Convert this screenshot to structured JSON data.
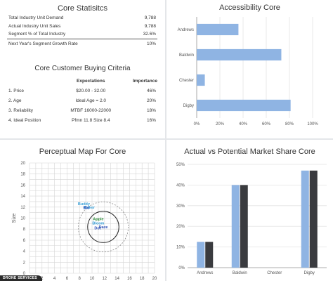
{
  "stats": {
    "title": "Core Statisitcs",
    "rows": [
      {
        "label": "Total Industry Unit Demand",
        "value": "9,788"
      },
      {
        "label": "Actual Industry Unit Sales",
        "value": "9,788"
      },
      {
        "label": "Segment % of Total Industry",
        "value": "32.6%"
      },
      {
        "label": "Next Year's Segment Growth Rate",
        "value": "10%"
      }
    ]
  },
  "criteria": {
    "title": "Core Customer Buying Criteria",
    "col_expectations": "Expectations",
    "col_importance": "Importance",
    "rows": [
      {
        "label": "1. Price",
        "expectation": "$20.00 - 32.00",
        "importance": "46%"
      },
      {
        "label": "2. Age",
        "expectation": "Ideal Age = 2.0",
        "importance": "20%"
      },
      {
        "label": "3. Reliability",
        "expectation": "MTBF 16000-22000",
        "importance": "18%"
      },
      {
        "label": "4. Ideal Position",
        "expectation": "Pfmn 11.8 Size 8.4",
        "importance": "16%"
      }
    ]
  },
  "badge": "DRONE SERVICES",
  "chart_data": [
    {
      "type": "bar",
      "orientation": "horizontal",
      "title": "Accessibility Core",
      "categories": [
        "Andrews",
        "Baldwin",
        "Chester",
        "Digby"
      ],
      "values": [
        36,
        73,
        7,
        81
      ],
      "xlim": [
        0,
        100
      ],
      "xticks": [
        "0%",
        "20%",
        "40%",
        "60%",
        "80%",
        "100%"
      ],
      "grid": true,
      "color": "#8fb4e3"
    },
    {
      "type": "scatter",
      "title": "Perceptual Map For Core",
      "ylabel": "Size",
      "xlim": [
        0,
        20
      ],
      "ylim": [
        0,
        20
      ],
      "yticks": [
        "0",
        "2",
        "4",
        "6",
        "8",
        "10",
        "12",
        "14",
        "16",
        "18",
        "20"
      ],
      "xticks": [
        "0",
        "2",
        "4",
        "6",
        "8",
        "10",
        "12",
        "14",
        "16",
        "18",
        "20"
      ],
      "grid": true,
      "circles": [
        {
          "center": [
            11.8,
            8.4
          ],
          "radius": 2.5,
          "style": "solid"
        },
        {
          "center": [
            11.8,
            8.4
          ],
          "radius": 4.0,
          "style": "dashed"
        }
      ],
      "points": [
        {
          "label": "Buddy",
          "x": 8.7,
          "y": 12.6,
          "color": "#3aa0d8"
        },
        {
          "label": "Baker",
          "x": 9.6,
          "y": 12.0,
          "color": "#3aa0d8"
        },
        {
          "label": "Bid",
          "x": 9.1,
          "y": 11.9,
          "color": "#2a4fb5"
        },
        {
          "label": "Apple",
          "x": 11.0,
          "y": 9.9,
          "color": "#2e8b3a"
        },
        {
          "label": "Bloom",
          "x": 11.0,
          "y": 9.1,
          "color": "#3aa0d8"
        },
        {
          "label": "Daze",
          "x": 11.8,
          "y": 8.4,
          "color": "#2a4fb5"
        },
        {
          "label": "Dot",
          "x": 10.9,
          "y": 8.2,
          "color": "#2a4fb5"
        }
      ]
    },
    {
      "type": "bar",
      "title": "Actual vs Potential Market Share Core",
      "categories": [
        "Andrews",
        "Baldwin",
        "Chester",
        "Digby"
      ],
      "ylim": [
        0,
        50
      ],
      "yticks": [
        "0%",
        "10%",
        "20%",
        "30%",
        "40%",
        "50%"
      ],
      "grid": true,
      "series": [
        {
          "values": [
            12.5,
            40,
            0,
            47
          ],
          "color": "#8fb4e3"
        },
        {
          "values": [
            12.5,
            40,
            0,
            47
          ],
          "color": "#3a3b3f"
        }
      ]
    }
  ]
}
